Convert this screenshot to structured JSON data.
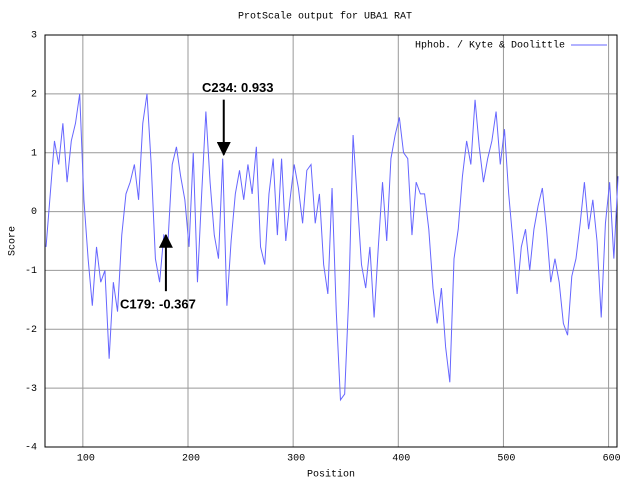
{
  "chart_data": {
    "type": "line",
    "title": "ProtScale output for UBA1 RAT",
    "x_label": "Position",
    "y_label": "Score",
    "xlim": [
      64,
      608
    ],
    "ylim": [
      -4,
      3
    ],
    "xticks": [
      100,
      200,
      300,
      400,
      500,
      600
    ],
    "yticks": [
      -4,
      -3,
      -2,
      -1,
      0,
      1,
      2,
      3
    ],
    "grid": true,
    "legend": "top-right",
    "x": [
      65,
      69,
      73,
      77,
      81,
      85,
      89,
      93,
      97,
      101,
      105,
      109,
      113,
      117,
      121,
      125,
      129,
      133,
      137,
      141,
      145,
      149,
      153,
      157,
      161,
      165,
      169,
      173,
      177,
      181,
      185,
      189,
      193,
      197,
      201,
      205,
      209,
      213,
      217,
      221,
      225,
      229,
      233,
      237,
      241,
      245,
      249,
      253,
      257,
      261,
      265,
      269,
      273,
      277,
      281,
      285,
      289,
      293,
      297,
      301,
      305,
      309,
      313,
      317,
      321,
      325,
      329,
      333,
      337,
      341,
      345,
      349,
      353,
      357,
      361,
      365,
      369,
      373,
      377,
      381,
      385,
      389,
      393,
      397,
      401,
      405,
      409,
      413,
      417,
      421,
      425,
      429,
      433,
      437,
      441,
      445,
      449,
      453,
      457,
      461,
      465,
      469,
      473,
      477,
      481,
      485,
      489,
      493,
      497,
      501,
      505,
      509,
      513,
      517,
      521,
      525,
      529,
      533,
      537,
      541,
      545,
      549,
      553,
      557,
      561,
      565,
      569,
      573,
      577,
      581,
      585,
      589,
      593,
      597,
      601,
      605,
      609
    ],
    "series": [
      {
        "name": "Hphob. / Kyte & Doolittle",
        "color": "#6666ff",
        "values": [
          -0.6,
          0.3,
          1.2,
          0.8,
          1.5,
          0.5,
          1.2,
          1.5,
          2.0,
          0.2,
          -0.8,
          -1.6,
          -0.6,
          -1.2,
          -1.0,
          -2.5,
          -1.2,
          -1.7,
          -0.4,
          0.3,
          0.5,
          0.8,
          0.2,
          1.5,
          2.0,
          0.8,
          -0.8,
          -1.2,
          -0.4,
          -0.5,
          0.8,
          1.1,
          0.6,
          0.2,
          -0.6,
          1.0,
          -1.2,
          0.3,
          1.7,
          0.5,
          -0.4,
          -0.8,
          0.9,
          -1.6,
          -0.5,
          0.3,
          0.7,
          0.2,
          0.8,
          0.3,
          1.1,
          -0.6,
          -0.9,
          0.3,
          0.9,
          -0.4,
          0.9,
          -0.5,
          0.2,
          0.8,
          0.4,
          -0.2,
          0.7,
          0.8,
          -0.2,
          0.3,
          -0.9,
          -1.4,
          0.4,
          -1.7,
          -3.2,
          -3.1,
          -1.4,
          1.3,
          0.2,
          -0.9,
          -1.3,
          -0.6,
          -1.8,
          -0.6,
          0.5,
          -0.5,
          0.9,
          1.3,
          1.6,
          1.0,
          0.9,
          -0.4,
          0.5,
          0.3,
          0.3,
          -0.3,
          -1.3,
          -1.9,
          -1.3,
          -2.3,
          -2.9,
          -0.8,
          -0.3,
          0.6,
          1.2,
          0.8,
          1.9,
          1.1,
          0.5,
          0.9,
          1.2,
          1.7,
          0.8,
          1.4,
          0.3,
          -0.5,
          -1.4,
          -0.6,
          -0.3,
          -1.0,
          -0.3,
          0.1,
          0.4,
          -0.3,
          -1.2,
          -0.8,
          -1.2,
          -1.9,
          -2.1,
          -1.1,
          -0.8,
          -0.2,
          0.5,
          -0.3,
          0.2,
          -0.5,
          -1.8,
          -0.2,
          0.5,
          -0.8,
          0.6
        ]
      }
    ],
    "annotations": [
      {
        "text": "C234: 0.933",
        "x": 234,
        "y": 0.933
      },
      {
        "text": "C179: -0.367",
        "x": 179,
        "y": -0.367
      }
    ]
  }
}
